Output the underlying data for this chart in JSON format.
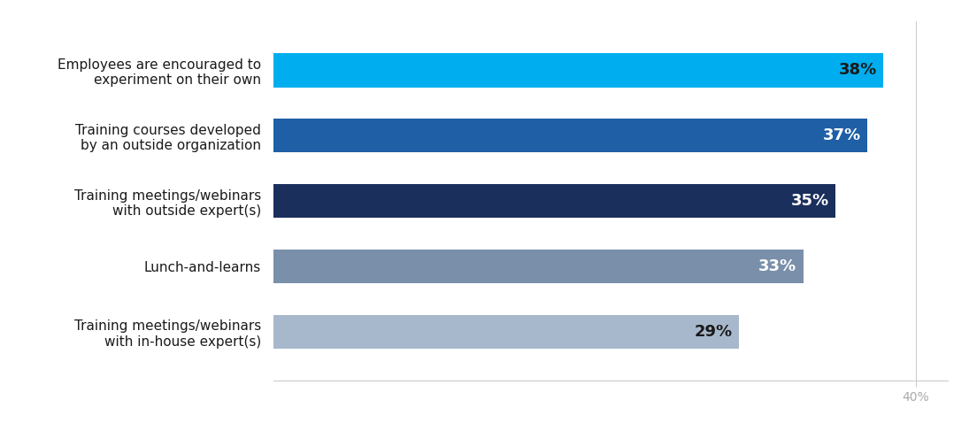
{
  "categories": [
    "Training meetings/webinars\nwith in-house expert(s)",
    "Lunch-and-learns",
    "Training meetings/webinars\nwith outside expert(s)",
    "Training courses developed\nby an outside organization",
    "Employees are encouraged to\nexperiment on their own"
  ],
  "values": [
    29,
    33,
    35,
    37,
    38
  ],
  "bar_colors": [
    "#a8b8cc",
    "#7a8faa",
    "#1b2f5c",
    "#1f5fa6",
    "#00aeef"
  ],
  "label_colors": [
    "#1a1a1a",
    "#ffffff",
    "#ffffff",
    "#ffffff",
    "#1a1a1a"
  ],
  "labels": [
    "29%",
    "33%",
    "35%",
    "37%",
    "38%"
  ],
  "xlim": [
    0,
    42
  ],
  "xtick_label": "40%",
  "xtick_val": 40,
  "background_color": "#ffffff",
  "bar_height": 0.52,
  "label_fontsize": 13,
  "tick_label_fontsize": 10,
  "ytick_fontsize": 11
}
